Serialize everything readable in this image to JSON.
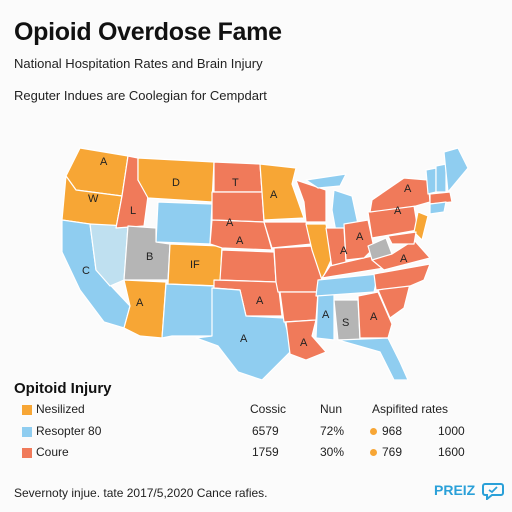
{
  "header": {
    "title": "Opioid Overdose Fame",
    "subtitle": "National Hospitation Rates and Brain Injury",
    "note": "Reguter Indues are Coolegian for Cempdart"
  },
  "colors": {
    "orange": "#f7a635",
    "red": "#f07a5a",
    "blue": "#8fcdf0",
    "pale_blue": "#bfe0f0",
    "gray": "#b5b5b5",
    "accent": "#2aa0d8"
  },
  "map": {
    "labels": [
      "A",
      "W",
      "L",
      "D",
      "T",
      "A",
      "B",
      "IF",
      "A",
      "C",
      "A",
      "A",
      "A",
      "A",
      "S",
      "A",
      "A",
      "A",
      "A",
      "A",
      "A",
      "A",
      "A"
    ]
  },
  "legend": {
    "title": "Opitoid Injury",
    "columns": [
      "Cossic",
      "Nun",
      "Aspifited rates"
    ],
    "rows": [
      {
        "label": "Nesilized",
        "color": "#f7a635"
      },
      {
        "label": "Resopter 80",
        "color": "#8fcdf0",
        "col1": "6579",
        "col2": "72%",
        "col3": "968",
        "col4": "1000",
        "dot": "#f7a635"
      },
      {
        "label": "Coure",
        "color": "#f07a5a",
        "col1": "1759",
        "col2": "30%",
        "col3": "769",
        "col4": "1600",
        "dot": "#f7a635"
      }
    ]
  },
  "footer": {
    "text": "Severnoty injue. tate 2017/5,2020 Cance rafies.",
    "brand": "PREIZ",
    "brand_icon": "chat-bubble-icon"
  }
}
